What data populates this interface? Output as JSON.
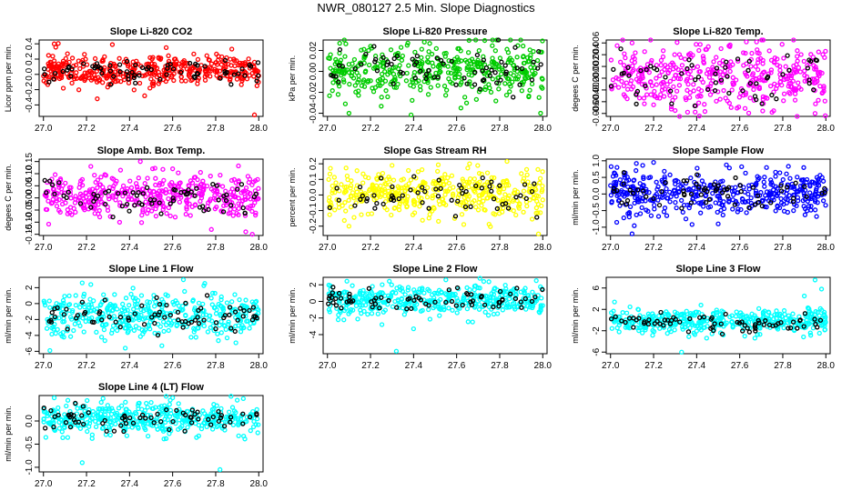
{
  "title": "NWR_080127  2.5 Min. Slope Diagnostics",
  "colors": {
    "black": "#000000"
  },
  "x_ticks": [
    "27.0",
    "27.2",
    "27.4",
    "27.6",
    "27.8",
    "28.0"
  ],
  "chart_data": [
    {
      "type": "scatter",
      "title": "Slope Li-820 CO2",
      "ylabel": "Licor ppm per min.",
      "color": "#ff0000",
      "xlim": [
        26.98,
        28.02
      ],
      "ylim": [
        -0.55,
        0.45
      ],
      "yticks": [
        -0.4,
        -0.2,
        0.0,
        0.2,
        0.4
      ],
      "ytick_labels": [
        "-0.4",
        "-0.2",
        "0.0",
        "0.2",
        "0.4"
      ],
      "center": 0.05,
      "spread": 0.1,
      "n": 420,
      "nblack": 70,
      "seed": 11,
      "outliers": [
        [
          27.05,
          0.4
        ],
        [
          27.32,
          0.39
        ],
        [
          27.57,
          0.35
        ],
        [
          27.98,
          -0.53
        ],
        [
          27.25,
          -0.32
        ],
        [
          27.47,
          -0.28
        ]
      ]
    },
    {
      "type": "scatter",
      "title": "Slope Li-820 Pressure",
      "ylabel": "kPa per min.",
      "color": "#00cc00",
      "xlim": [
        26.98,
        28.02
      ],
      "ylim": [
        -0.043,
        0.03
      ],
      "yticks": [
        -0.04,
        -0.02,
        0.0,
        0.02
      ],
      "ytick_labels": [
        "-0.04",
        "-0.02",
        "0.00",
        "0.02"
      ],
      "center": 0.002,
      "spread": 0.012,
      "n": 420,
      "nblack": 70,
      "seed": 23,
      "outliers": [
        [
          27.45,
          0.028
        ],
        [
          27.2,
          0.024
        ],
        [
          27.1,
          -0.04
        ],
        [
          27.99,
          -0.04
        ],
        [
          27.62,
          -0.035
        ]
      ]
    },
    {
      "type": "scatter",
      "title": "Slope Li-820 Temp.",
      "ylabel": "degees C per min.",
      "color": "#ff00ff",
      "xlim": [
        26.98,
        28.02
      ],
      "ylim": [
        -0.0065,
        0.0065
      ],
      "yticks": [
        -0.006,
        -0.004,
        -0.002,
        0.0,
        0.002,
        0.004,
        0.006
      ],
      "ytick_labels": [
        "-0.006",
        "-0.004",
        "-0.002",
        "0.000",
        "0.002",
        "0.004",
        "0.006"
      ],
      "center": 0.0,
      "spread": 0.0027,
      "n": 420,
      "nblack": 60,
      "seed": 37,
      "outliers": [
        [
          27.1,
          0.006
        ],
        [
          27.55,
          0.0055
        ],
        [
          27.3,
          -0.0055
        ],
        [
          27.75,
          -0.0058
        ],
        [
          27.95,
          -0.006
        ]
      ]
    },
    {
      "type": "scatter",
      "title": "Slope Amb. Box Temp.",
      "ylabel": "degees C per min.",
      "color": "#ff00ff",
      "xlim": [
        26.98,
        28.02
      ],
      "ylim": [
        -0.155,
        0.16
      ],
      "yticks": [
        -0.15,
        -0.1,
        -0.05,
        0.0,
        0.05,
        0.1,
        0.15
      ],
      "ytick_labels": [
        "-0.15",
        "-0.10",
        "-0.05",
        "0.00",
        "0.05",
        "0.10",
        "0.15"
      ],
      "center": 0.005,
      "spread": 0.045,
      "n": 420,
      "nblack": 70,
      "seed": 41,
      "outliers": [
        [
          27.45,
          0.15
        ],
        [
          27.22,
          0.13
        ],
        [
          27.97,
          -0.15
        ],
        [
          27.78,
          -0.13
        ],
        [
          27.6,
          0.12
        ]
      ]
    },
    {
      "type": "scatter",
      "title": "Slope Gas Stream RH",
      "ylabel": "percent per min.",
      "color": "#ffff00",
      "xlim": [
        26.98,
        28.02
      ],
      "ylim": [
        -0.26,
        0.23
      ],
      "yticks": [
        -0.2,
        -0.1,
        0.0,
        0.1,
        0.2
      ],
      "ytick_labels": [
        "-0.2",
        "-0.1",
        "0.0",
        "0.1",
        "0.2"
      ],
      "center": 0.01,
      "spread": 0.075,
      "n": 420,
      "nblack": 60,
      "seed": 53,
      "outliers": [
        [
          27.98,
          -0.25
        ],
        [
          27.66,
          0.2
        ],
        [
          27.3,
          0.19
        ],
        [
          27.1,
          -0.2
        ]
      ]
    },
    {
      "type": "scatter",
      "title": "Slope Sample Flow",
      "ylabel": "ml/min per min.",
      "color": "#0000ff",
      "xlim": [
        26.98,
        28.02
      ],
      "ylim": [
        -1.25,
        1.05
      ],
      "yticks": [
        -1.0,
        -0.5,
        0.0,
        0.5,
        1.0
      ],
      "ytick_labels": [
        "-1.0",
        "-0.5",
        "0.0",
        "0.5",
        "1.0"
      ],
      "center": 0.02,
      "spread": 0.3,
      "n": 420,
      "nblack": 65,
      "seed": 67,
      "outliers": [
        [
          27.03,
          0.8
        ],
        [
          27.12,
          0.92
        ],
        [
          27.2,
          0.95
        ],
        [
          27.1,
          -1.2
        ],
        [
          27.5,
          -0.9
        ],
        [
          27.35,
          -0.75
        ]
      ]
    },
    {
      "type": "scatter",
      "title": "Slope Line 1 Flow",
      "ylabel": "ml/min per min.",
      "color": "#00ffff",
      "xlim": [
        26.98,
        28.02
      ],
      "ylim": [
        -6.3,
        3.3
      ],
      "yticks": [
        -6,
        -4,
        -2,
        0,
        2
      ],
      "ytick_labels": [
        "-6",
        "-4",
        "-2",
        "0",
        "2"
      ],
      "center": -1.5,
      "spread": 1.3,
      "n": 420,
      "nblack": 75,
      "seed": 79,
      "outliers": [
        [
          27.03,
          -5.9
        ],
        [
          27.18,
          2.6
        ],
        [
          27.22,
          2.4
        ],
        [
          27.65,
          3.0
        ],
        [
          27.38,
          -5.6
        ],
        [
          27.55,
          -5.3
        ]
      ]
    },
    {
      "type": "scatter",
      "title": "Slope Line 2 Flow",
      "ylabel": "ml/min per min.",
      "color": "#00ffff",
      "xlim": [
        26.98,
        28.02
      ],
      "ylim": [
        -6.3,
        2.9
      ],
      "yticks": [
        -4,
        -2,
        0,
        2
      ],
      "ytick_labels": [
        "-4",
        "-2",
        "0",
        "2"
      ],
      "center": 0.2,
      "spread": 0.9,
      "n": 420,
      "nblack": 70,
      "seed": 83,
      "outliers": [
        [
          27.32,
          -6.0
        ],
        [
          27.55,
          2.6
        ],
        [
          27.97,
          2.5
        ],
        [
          27.05,
          -2.2
        ],
        [
          27.4,
          -3.3
        ]
      ]
    },
    {
      "type": "scatter",
      "title": "Slope Line 3 Flow",
      "ylabel": "ml/min per min.",
      "color": "#00ffff",
      "xlim": [
        26.98,
        28.02
      ],
      "ylim": [
        -6.3,
        8.0
      ],
      "yticks": [
        -6,
        -2,
        2,
        6
      ],
      "ytick_labels": [
        "-6",
        "-2",
        "2",
        "6"
      ],
      "center": -0.3,
      "spread": 1.2,
      "n": 420,
      "nblack": 70,
      "seed": 97,
      "outliers": [
        [
          27.33,
          -6.0
        ],
        [
          27.95,
          7.5
        ],
        [
          27.98,
          5.8
        ],
        [
          27.9,
          4.5
        ],
        [
          27.42,
          2.8
        ]
      ]
    },
    {
      "type": "scatter",
      "title": "Slope Line 4 (LT) Flow",
      "ylabel": "ml/min per min.",
      "color": "#00ffff",
      "xlim": [
        26.98,
        28.02
      ],
      "ylim": [
        -1.1,
        0.55
      ],
      "yticks": [
        -1.0,
        -0.5,
        0.0
      ],
      "ytick_labels": [
        "-1.0",
        "-0.5",
        "0.0"
      ],
      "center": 0.05,
      "spread": 0.17,
      "n": 420,
      "nblack": 70,
      "seed": 101,
      "outliers": [
        [
          27.18,
          -0.9
        ],
        [
          27.82,
          -1.05
        ],
        [
          27.6,
          0.5
        ],
        [
          27.05,
          0.5
        ],
        [
          27.9,
          0.45
        ]
      ]
    }
  ]
}
